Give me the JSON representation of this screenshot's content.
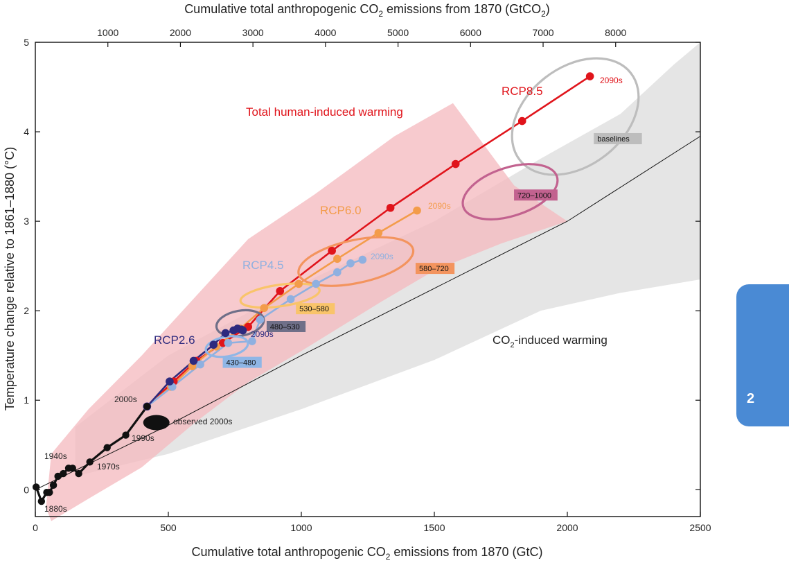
{
  "chart_data": {
    "type": "line",
    "xlabel_bottom": "Cumulative total anthropogenic CO",
    "xlabel_bottom_sub": "2",
    "xlabel_bottom_tail": " emissions from 1870 (GtC)",
    "xlabel_top": "Cumulative total anthropogenic CO",
    "xlabel_top_sub": "2",
    "xlabel_top_tail": " emissions from 1870 (GtCO",
    "xlabel_top_sub2": "2",
    "xlabel_top_close": ")",
    "ylabel": "Temperature change relative to 1861–1880 (°C)",
    "xlim": [
      0,
      2500
    ],
    "ylim": [
      -0.3,
      5
    ],
    "x_ticks": [
      0,
      500,
      1000,
      1500,
      2000,
      2500
    ],
    "x_tick_labels": [
      "0",
      "500",
      "1000",
      "1500",
      "2000",
      "2500"
    ],
    "y_ticks": [
      0,
      1,
      2,
      3,
      4,
      5
    ],
    "y_tick_labels": [
      "0",
      "1",
      "2",
      "3",
      "4",
      "5"
    ],
    "top_ticks_gtco2": [
      1000,
      2000,
      3000,
      4000,
      5000,
      6000,
      7000,
      8000
    ],
    "top_tick_labels": [
      "1000",
      "2000",
      "3000",
      "4000",
      "5000",
      "6000",
      "7000",
      "8000"
    ],
    "colors": {
      "historical": "#111111",
      "rcp26": "#2e2a7e",
      "rcp45": "#8fb0e0",
      "rcp60": "#f39c4a",
      "rcp85": "#e0141b",
      "pink_band": "#f4b8bd",
      "grey_band": "#dcdcdc",
      "baselines_ellipse": "#bdbdbd",
      "e720": "#c2628f",
      "e580": "#f3945e",
      "e530": "#f9c46a",
      "e480": "#6f6f88",
      "e430": "#8fb6e6",
      "tab": "#4a8ad4"
    },
    "series": [
      {
        "name": "RCP8.5",
        "key": "rcp85",
        "x": [
          420,
          520,
          605,
          705,
          800,
          920,
          1115,
          1335,
          1580,
          1830,
          2085
        ],
        "y": [
          0.93,
          1.21,
          1.44,
          1.64,
          1.82,
          2.22,
          2.67,
          3.15,
          3.64,
          4.12,
          4.62
        ]
      },
      {
        "name": "RCP6.0",
        "key": "rcp60",
        "x": [
          420,
          510,
          590,
          680,
          770,
          860,
          990,
          1135,
          1290,
          1435
        ],
        "y": [
          0.93,
          1.15,
          1.38,
          1.6,
          1.8,
          2.03,
          2.3,
          2.58,
          2.87,
          3.12
        ]
      },
      {
        "name": "RCP4.5",
        "key": "rcp45",
        "x": [
          420,
          515,
          620,
          725,
          815,
          845,
          960,
          1055,
          1135,
          1185,
          1230
        ],
        "y": [
          0.93,
          1.15,
          1.4,
          1.64,
          1.66,
          1.9,
          2.13,
          2.3,
          2.43,
          2.53,
          2.57
        ]
      },
      {
        "name": "RCP2.6",
        "key": "rcp26",
        "x": [
          420,
          505,
          595,
          670,
          715,
          745,
          760,
          775,
          780
        ],
        "y": [
          0.93,
          1.21,
          1.44,
          1.62,
          1.75,
          1.78,
          1.8,
          1.79,
          1.78
        ]
      },
      {
        "name": "historical",
        "key": "historical",
        "x": [
          3,
          23,
          43,
          53,
          68,
          85,
          105,
          125,
          140,
          163,
          205,
          270,
          340,
          420
        ],
        "y": [
          0.03,
          -0.13,
          -0.03,
          -0.03,
          0.05,
          0.15,
          0.18,
          0.24,
          0.24,
          0.18,
          0.31,
          0.47,
          0.61,
          0.93
        ]
      }
    ],
    "co2_line": {
      "x": [
        0,
        500,
        1000,
        1500,
        2000,
        2500
      ],
      "y": [
        0,
        0.72,
        1.5,
        2.25,
        3.0,
        3.95
      ]
    },
    "pink_band": {
      "x": [
        40,
        60,
        200,
        400,
        600,
        800,
        1050,
        1350,
        1570,
        1800,
        2000,
        1750,
        1500,
        1300,
        1000,
        800,
        600,
        400,
        200,
        60,
        40
      ],
      "y": [
        -0.2,
        0.4,
        0.9,
        1.5,
        2.15,
        2.8,
        3.3,
        3.95,
        4.32,
        3.4,
        3.0,
        2.75,
        2.45,
        2.1,
        1.55,
        1.2,
        0.75,
        0.25,
        -0.1,
        -0.35,
        -0.2
      ]
    },
    "grey_band": {
      "x": [
        150,
        500,
        1000,
        1500,
        1900,
        2200,
        2400,
        2500,
        2500,
        2200,
        1900,
        1500,
        1000,
        500,
        150
      ],
      "y": [
        0.7,
        1.5,
        2.3,
        3.0,
        3.7,
        4.2,
        4.75,
        5.0,
        2.35,
        2.2,
        2.0,
        1.45,
        0.9,
        0.4,
        0.15
      ]
    },
    "ellipses": [
      {
        "name": "baselines",
        "key": "baselines_ellipse",
        "cx": 2030,
        "cy": 4.17,
        "rx": 265,
        "ry": 0.55,
        "rot": -38,
        "label": "baselines",
        "lx": 2110,
        "ly": 3.9
      },
      {
        "name": "720–1000",
        "key": "e720",
        "cx": 1785,
        "cy": 3.33,
        "rx": 185,
        "ry": 0.27,
        "rot": -18,
        "label": "720–1000",
        "lx": 1810,
        "ly": 3.27
      },
      {
        "name": "580–720",
        "key": "e580",
        "cx": 1205,
        "cy": 2.55,
        "rx": 220,
        "ry": 0.24,
        "rot": -12,
        "label": "580–720",
        "lx": 1440,
        "ly": 2.45
      },
      {
        "name": "530–580",
        "key": "e530",
        "cx": 920,
        "cy": 2.17,
        "rx": 150,
        "ry": 0.12,
        "rot": -8,
        "label": "530–580",
        "lx": 990,
        "ly": 2.0
      },
      {
        "name": "480–530",
        "key": "e480",
        "cx": 770,
        "cy": 1.86,
        "rx": 90,
        "ry": 0.14,
        "rot": -10,
        "label": "480–530",
        "lx": 880,
        "ly": 1.8
      },
      {
        "name": "430–480",
        "key": "e430",
        "cx": 720,
        "cy": 1.6,
        "rx": 80,
        "ry": 0.11,
        "rot": -10,
        "label": "430–480",
        "lx": 715,
        "ly": 1.4
      }
    ],
    "observed": {
      "label": "observed 2000s",
      "x": 455,
      "y": 0.75
    },
    "annotations": {
      "rcp85_label": "RCP8.5",
      "rcp60_label": "RCP6.0",
      "rcp45_label": "RCP4.5",
      "rcp26_label": "RCP2.6",
      "rcp85_end": "2090s",
      "rcp60_end": "2090s",
      "rcp45_end": "2090s",
      "rcp26_end": "2090s",
      "total_warming": "Total human-induced warming",
      "co2_warming": "CO",
      "co2_warming_sub": "2",
      "co2_warming_tail": "-induced warming",
      "d1880": "1880s",
      "d1940": "1940s",
      "d1970": "1970s",
      "d1990": "1990s",
      "d2000": "2000s"
    }
  },
  "tab": {
    "label": "2"
  }
}
